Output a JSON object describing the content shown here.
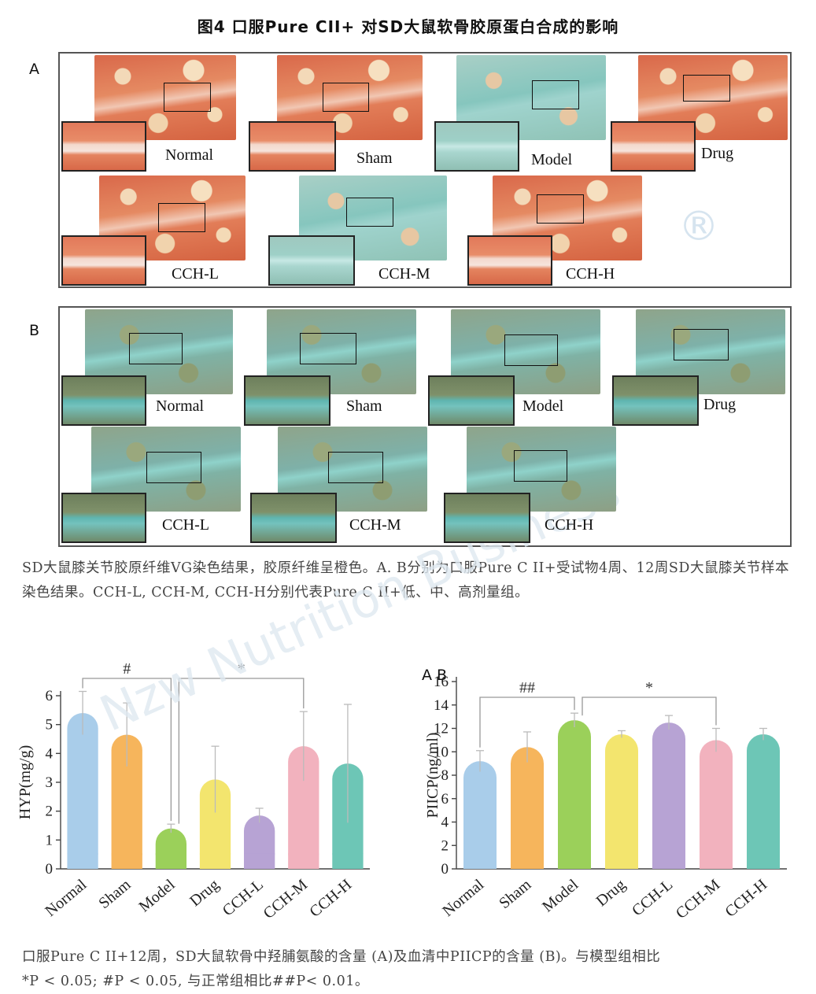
{
  "title": "图4 口服Pure CII+ 对SD大鼠软骨胶原蛋白合成的影响",
  "panel_a": {
    "letter": "A",
    "labels": [
      "Normal",
      "Sham",
      "Model",
      "Drug",
      "CCH-L",
      "CCH-M",
      "CCH-H"
    ]
  },
  "panel_b": {
    "letter": "B",
    "labels": [
      "Normal",
      "Sham",
      "Model",
      "Drug",
      "CCH-L",
      "CCH-M",
      "CCH-H"
    ]
  },
  "caption1": "SD大鼠膝关节胶原纤维VG染色结果，胶原纤维呈橙色。A.  B分别为口服Pure  C  II+受试物4周、12周SD大鼠膝关节样本染色结果。CCH-L, CCH-M, CCH-H分别代表Pure C II+低、中、高剂量组。",
  "caption2_line1": "口服Pure C II+12周，SD大鼠软骨中羟脯氨酸的含量 (A)及血清中PIICP的含量 (B)。与模型组相比",
  "caption2_line2": "*P < 0.05; #P < 0.05, 与正常组相比##P< 0.01。",
  "watermark": {
    "registered_mark": "®",
    "text": "Nzw Nutrition Business"
  },
  "chart_data": [
    {
      "type": "bar",
      "ylabel": "HYP(mg/g)",
      "xlabel": "",
      "categories": [
        "Normal",
        "Sham",
        "Model",
        "Drug",
        "CCH-L",
        "CCH-M",
        "CCH-H"
      ],
      "values": [
        5.4,
        4.65,
        1.4,
        3.1,
        1.85,
        4.25,
        3.65
      ],
      "errors": [
        0.75,
        1.1,
        0.15,
        1.15,
        0.25,
        1.2,
        2.05
      ],
      "colors": [
        "#a9cdea",
        "#f6b55c",
        "#9bd05a",
        "#f3e56e",
        "#b7a3d4",
        "#f2b2be",
        "#6dc6b6"
      ],
      "ylim": [
        0,
        6
      ],
      "yticks": [
        0,
        1,
        2,
        3,
        4,
        5,
        6
      ],
      "grid": false,
      "significance": [
        {
          "from": "Normal",
          "to": "Model",
          "label": "#"
        },
        {
          "from": "Model",
          "to": "CCH-M",
          "label": "*"
        }
      ]
    },
    {
      "type": "bar",
      "panel_label": "A B",
      "ylabel": "PIICP(ng/ml)",
      "xlabel": "",
      "categories": [
        "Normal",
        "Sham",
        "Model",
        "Drug",
        "CCH-L",
        "CCH-M",
        "CCH-H"
      ],
      "values": [
        9.2,
        10.4,
        12.7,
        11.5,
        12.5,
        11.0,
        11.5
      ],
      "errors": [
        0.9,
        1.3,
        0.6,
        0.3,
        0.6,
        1.0,
        0.5
      ],
      "colors": [
        "#a9cdea",
        "#f6b55c",
        "#9bd05a",
        "#f3e56e",
        "#b7a3d4",
        "#f2b2be",
        "#6dc6b6"
      ],
      "ylim": [
        0,
        16
      ],
      "yticks": [
        0,
        2,
        4,
        6,
        8,
        10,
        12,
        14,
        16
      ],
      "grid": false,
      "significance": [
        {
          "from": "Normal",
          "to": "Model",
          "label": "##"
        },
        {
          "from": "Model",
          "to": "CCH-M",
          "label": "*"
        }
      ]
    }
  ]
}
